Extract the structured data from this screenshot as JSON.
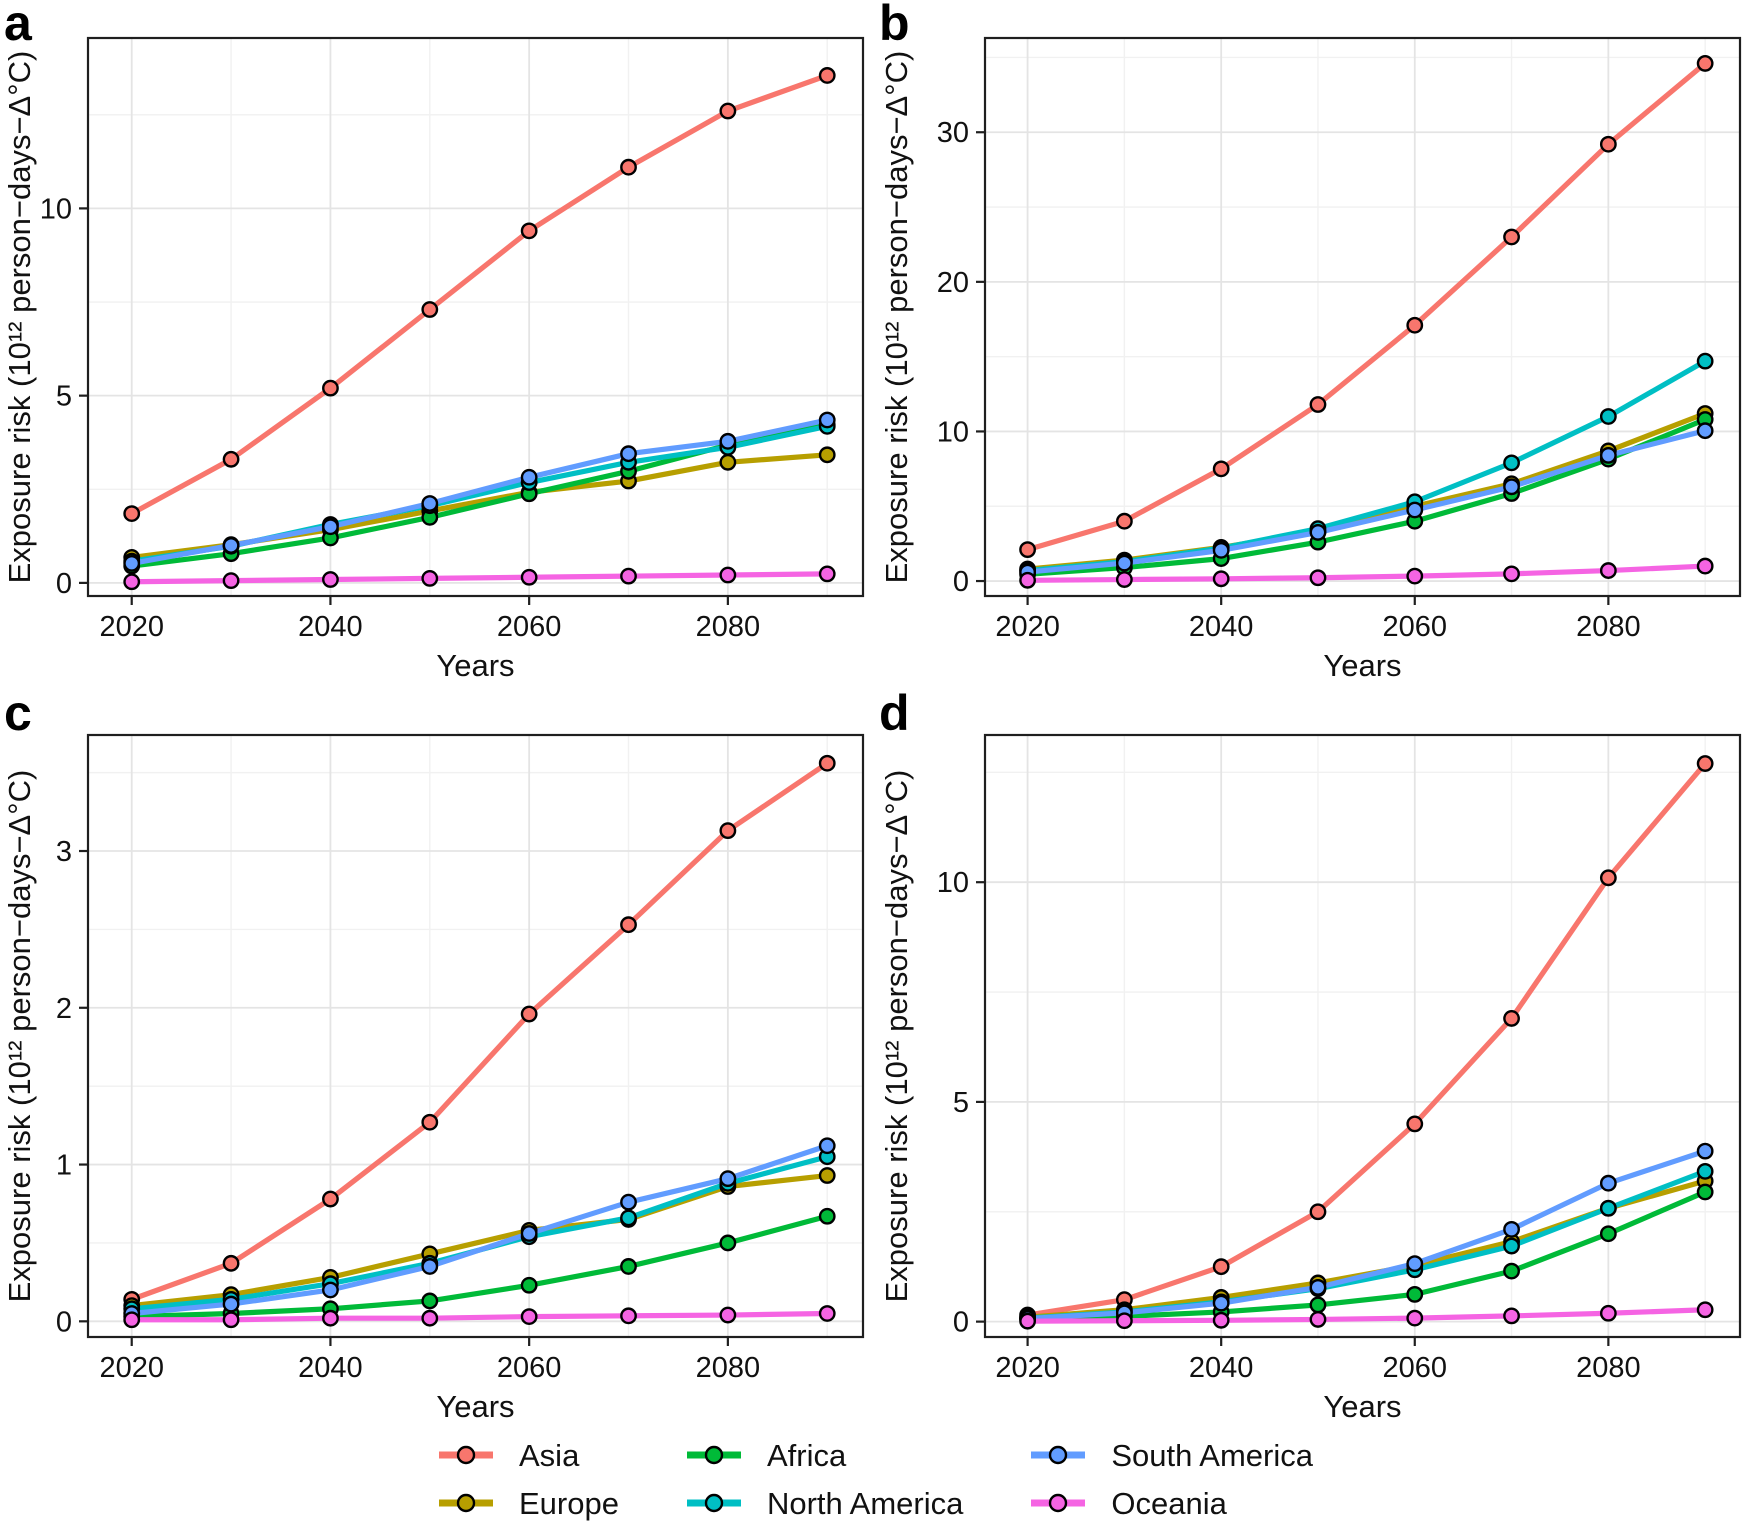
{
  "figure": {
    "xlabel": "Years",
    "ylabel": "Exposure risk (10¹² person−days−Δ°C)"
  },
  "legend": {
    "items": [
      {
        "label": "Asia",
        "color": "#F8766D"
      },
      {
        "label": "Europe",
        "color": "#B79F00"
      },
      {
        "label": "Africa",
        "color": "#00BA38"
      },
      {
        "label": "North America",
        "color": "#00BFC4"
      },
      {
        "label": "South America",
        "color": "#619CFF"
      },
      {
        "label": "Oceania",
        "color": "#F564E3"
      }
    ]
  },
  "chart_data": [
    {
      "type": "line",
      "panel": "a",
      "xlabel": "Years",
      "ylabel": "Exposure risk (10¹² person−days−Δ°C)",
      "x": [
        2020,
        2030,
        2040,
        2050,
        2060,
        2070,
        2080,
        2090
      ],
      "xticks": [
        2020,
        2040,
        2060,
        2080
      ],
      "xminor": [
        2030,
        2050,
        2070,
        2090
      ],
      "xlim": [
        2015.6,
        2093.6
      ],
      "yticks": [
        0,
        5,
        10
      ],
      "ylim": [
        -0.35,
        14.55
      ],
      "grid": true,
      "legend_position": "shared-bottom",
      "series": [
        {
          "name": "Asia",
          "color": "#F8766D",
          "values": [
            1.85,
            3.3,
            5.2,
            7.3,
            9.4,
            11.1,
            12.6,
            13.55
          ]
        },
        {
          "name": "Europe",
          "color": "#B79F00",
          "values": [
            0.68,
            1.02,
            1.42,
            1.92,
            2.42,
            2.72,
            3.22,
            3.42
          ]
        },
        {
          "name": "Africa",
          "color": "#00BA38",
          "values": [
            0.45,
            0.78,
            1.2,
            1.75,
            2.38,
            2.98,
            3.68,
            4.22
          ]
        },
        {
          "name": "North America",
          "color": "#00BFC4",
          "values": [
            0.58,
            0.98,
            1.56,
            2.06,
            2.68,
            3.22,
            3.62,
            4.18
          ]
        },
        {
          "name": "South America",
          "color": "#619CFF",
          "values": [
            0.52,
            1.0,
            1.5,
            2.12,
            2.82,
            3.45,
            3.78,
            4.35
          ]
        },
        {
          "name": "Oceania",
          "color": "#F564E3",
          "values": [
            0.03,
            0.06,
            0.09,
            0.12,
            0.15,
            0.18,
            0.21,
            0.24
          ]
        }
      ]
    },
    {
      "type": "line",
      "panel": "b",
      "xlabel": "Years",
      "ylabel": "Exposure risk (10¹² person−days−Δ°C)",
      "x": [
        2020,
        2030,
        2040,
        2050,
        2060,
        2070,
        2080,
        2090
      ],
      "xticks": [
        2020,
        2040,
        2060,
        2080
      ],
      "xminor": [
        2030,
        2050,
        2070,
        2090
      ],
      "xlim": [
        2015.6,
        2093.6
      ],
      "yticks": [
        0,
        10,
        20,
        30
      ],
      "ylim": [
        -1.0,
        36.3
      ],
      "grid": true,
      "legend_position": "shared-bottom",
      "series": [
        {
          "name": "Asia",
          "color": "#F8766D",
          "values": [
            2.1,
            4.0,
            7.5,
            11.8,
            17.1,
            23.0,
            29.2,
            34.6
          ]
        },
        {
          "name": "Europe",
          "color": "#B79F00",
          "values": [
            0.8,
            1.4,
            2.25,
            3.3,
            5.0,
            6.5,
            8.7,
            11.2
          ]
        },
        {
          "name": "Africa",
          "color": "#00BA38",
          "values": [
            0.45,
            0.9,
            1.5,
            2.6,
            4.0,
            5.85,
            8.15,
            10.8
          ]
        },
        {
          "name": "North America",
          "color": "#00BFC4",
          "values": [
            0.7,
            1.3,
            2.2,
            3.5,
            5.3,
            7.9,
            11.0,
            14.7
          ]
        },
        {
          "name": "South America",
          "color": "#619CFF",
          "values": [
            0.6,
            1.2,
            2.05,
            3.25,
            4.75,
            6.3,
            8.4,
            10.05
          ]
        },
        {
          "name": "Oceania",
          "color": "#F564E3",
          "values": [
            0.05,
            0.1,
            0.15,
            0.22,
            0.33,
            0.48,
            0.7,
            1.0
          ]
        }
      ]
    },
    {
      "type": "line",
      "panel": "c",
      "xlabel": "Years",
      "ylabel": "Exposure risk (10¹² person−days−Δ°C)",
      "x": [
        2020,
        2030,
        2040,
        2050,
        2060,
        2070,
        2080,
        2090
      ],
      "xticks": [
        2020,
        2040,
        2060,
        2080
      ],
      "xminor": [
        2030,
        2050,
        2070,
        2090
      ],
      "xlim": [
        2015.6,
        2093.6
      ],
      "yticks": [
        0,
        1,
        2,
        3
      ],
      "ylim": [
        -0.1,
        3.74
      ],
      "grid": true,
      "legend_position": "shared-bottom",
      "series": [
        {
          "name": "Asia",
          "color": "#F8766D",
          "values": [
            0.14,
            0.37,
            0.78,
            1.27,
            1.96,
            2.53,
            3.13,
            3.56
          ]
        },
        {
          "name": "Europe",
          "color": "#B79F00",
          "values": [
            0.1,
            0.17,
            0.28,
            0.43,
            0.58,
            0.65,
            0.86,
            0.93
          ]
        },
        {
          "name": "Africa",
          "color": "#00BA38",
          "values": [
            0.03,
            0.05,
            0.08,
            0.13,
            0.23,
            0.35,
            0.5,
            0.67
          ]
        },
        {
          "name": "North America",
          "color": "#00BFC4",
          "values": [
            0.08,
            0.14,
            0.24,
            0.37,
            0.54,
            0.66,
            0.88,
            1.05
          ]
        },
        {
          "name": "South America",
          "color": "#619CFF",
          "values": [
            0.05,
            0.11,
            0.2,
            0.35,
            0.56,
            0.76,
            0.91,
            1.12
          ]
        },
        {
          "name": "Oceania",
          "color": "#F564E3",
          "values": [
            0.01,
            0.01,
            0.02,
            0.02,
            0.03,
            0.035,
            0.04,
            0.05
          ]
        }
      ]
    },
    {
      "type": "line",
      "panel": "d",
      "xlabel": "Years",
      "ylabel": "Exposure risk (10¹² person−days−Δ°C)",
      "x": [
        2020,
        2030,
        2040,
        2050,
        2060,
        2070,
        2080,
        2090
      ],
      "xticks": [
        2020,
        2040,
        2060,
        2080
      ],
      "xminor": [
        2030,
        2050,
        2070,
        2090
      ],
      "xlim": [
        2015.6,
        2093.6
      ],
      "yticks": [
        0,
        5,
        10
      ],
      "ylim": [
        -0.35,
        13.35
      ],
      "grid": true,
      "legend_position": "shared-bottom",
      "series": [
        {
          "name": "Asia",
          "color": "#F8766D",
          "values": [
            0.15,
            0.5,
            1.25,
            2.5,
            4.5,
            6.9,
            10.1,
            12.7
          ]
        },
        {
          "name": "Europe",
          "color": "#B79F00",
          "values": [
            0.1,
            0.27,
            0.55,
            0.88,
            1.28,
            1.82,
            2.58,
            3.2
          ]
        },
        {
          "name": "Africa",
          "color": "#00BA38",
          "values": [
            0.05,
            0.12,
            0.22,
            0.38,
            0.62,
            1.15,
            2.0,
            2.95
          ]
        },
        {
          "name": "North America",
          "color": "#00BFC4",
          "values": [
            0.08,
            0.22,
            0.45,
            0.75,
            1.18,
            1.72,
            2.58,
            3.42
          ]
        },
        {
          "name": "South America",
          "color": "#619CFF",
          "values": [
            0.07,
            0.2,
            0.42,
            0.78,
            1.32,
            2.1,
            3.15,
            3.88
          ]
        },
        {
          "name": "Oceania",
          "color": "#F564E3",
          "values": [
            0.01,
            0.02,
            0.03,
            0.05,
            0.08,
            0.13,
            0.19,
            0.27
          ]
        }
      ]
    }
  ]
}
